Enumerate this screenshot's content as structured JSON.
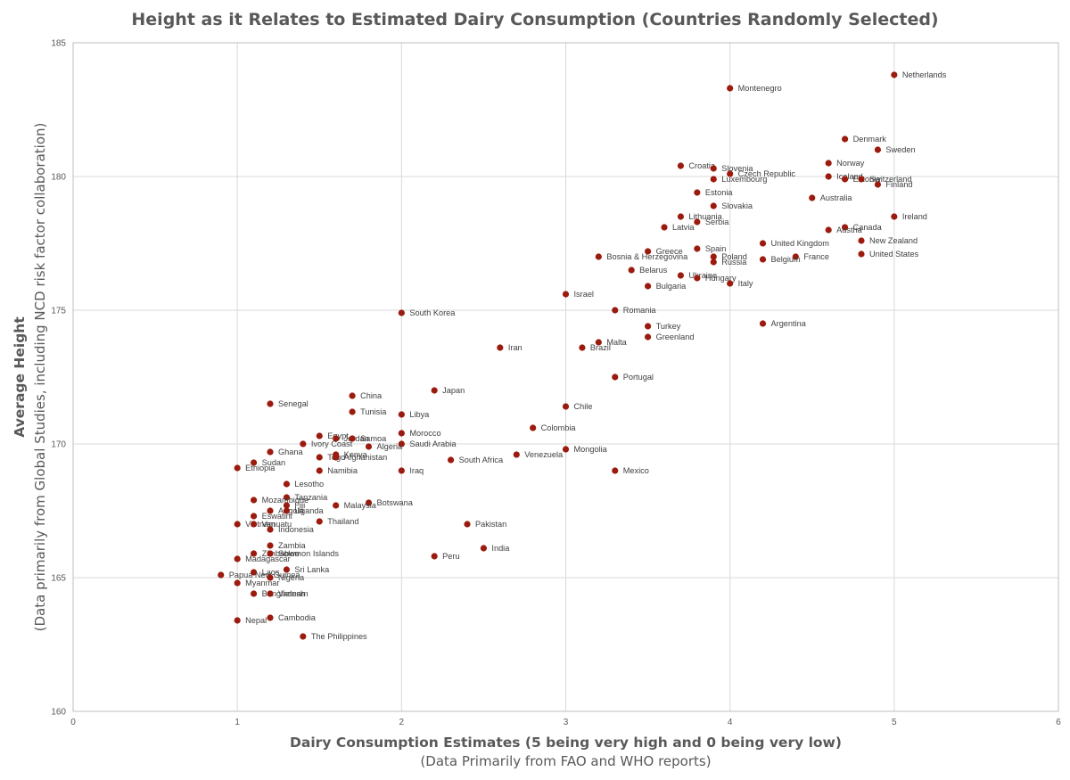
{
  "chart_data": {
    "type": "scatter",
    "title": "Height as it Relates to Estimated Dairy Consumption (Countries Randomly Selected)",
    "xlabel": "Dairy Consumption Estimates (5 being very high and 0 being very low)",
    "xlabel_sub": "(Data Primarily from FAO and WHO reports)",
    "ylabel": "Average Height",
    "ylabel_sub": "(Data primarily  from Global Studies, including NCD risk factor collaboration)",
    "xlim": [
      0,
      6
    ],
    "ylim": [
      160,
      185
    ],
    "x_ticks": [
      "0",
      "1",
      "2",
      "3",
      "4",
      "5",
      "6"
    ],
    "y_ticks": [
      "160",
      "165",
      "170",
      "175",
      "180",
      "185"
    ],
    "grid": true,
    "marker_color": "#9b1b0e",
    "points": [
      {
        "label": "Netherlands",
        "x": 5.0,
        "y": 183.8
      },
      {
        "label": "Montenegro",
        "x": 4.0,
        "y": 183.3
      },
      {
        "label": "Denmark",
        "x": 4.7,
        "y": 181.4
      },
      {
        "label": "Sweden",
        "x": 4.9,
        "y": 181.0
      },
      {
        "label": "Norway",
        "x": 4.6,
        "y": 180.5
      },
      {
        "label": "Croatia",
        "x": 3.7,
        "y": 180.4
      },
      {
        "label": "Slovenia",
        "x": 3.9,
        "y": 180.3
      },
      {
        "label": "Czech Republic",
        "x": 4.0,
        "y": 180.1
      },
      {
        "label": "Iceland",
        "x": 4.6,
        "y": 180.0
      },
      {
        "label": "Estonia",
        "x": 4.7,
        "y": 179.9
      },
      {
        "label": "Switzerland",
        "x": 4.8,
        "y": 179.9
      },
      {
        "label": "Luxembourg",
        "x": 3.9,
        "y": 179.9
      },
      {
        "label": "Finland",
        "x": 4.9,
        "y": 179.7
      },
      {
        "label": "Estonia",
        "x": 3.8,
        "y": 179.4
      },
      {
        "label": "Australia",
        "x": 4.5,
        "y": 179.2
      },
      {
        "label": "Slovakia",
        "x": 3.9,
        "y": 178.9
      },
      {
        "label": "Lithuania",
        "x": 3.7,
        "y": 178.5
      },
      {
        "label": "Ireland",
        "x": 5.0,
        "y": 178.5
      },
      {
        "label": "Serbia",
        "x": 3.8,
        "y": 178.3
      },
      {
        "label": "Latvia",
        "x": 3.6,
        "y": 178.1
      },
      {
        "label": "Canada",
        "x": 4.7,
        "y": 178.1
      },
      {
        "label": "Austria",
        "x": 4.6,
        "y": 178.0
      },
      {
        "label": "New Zealand",
        "x": 4.8,
        "y": 177.6
      },
      {
        "label": "United Kingdom",
        "x": 4.2,
        "y": 177.5
      },
      {
        "label": "Spain",
        "x": 3.8,
        "y": 177.3
      },
      {
        "label": "Greece",
        "x": 3.5,
        "y": 177.2
      },
      {
        "label": "United States",
        "x": 4.8,
        "y": 177.1
      },
      {
        "label": "Bosnia & Herzegovina",
        "x": 3.2,
        "y": 177.0
      },
      {
        "label": "Poland",
        "x": 3.9,
        "y": 177.0
      },
      {
        "label": "France",
        "x": 4.4,
        "y": 177.0
      },
      {
        "label": "Belgium",
        "x": 4.2,
        "y": 176.9
      },
      {
        "label": "Russia",
        "x": 3.9,
        "y": 176.8
      },
      {
        "label": "Belarus",
        "x": 3.4,
        "y": 176.5
      },
      {
        "label": "Ukraine",
        "x": 3.7,
        "y": 176.3
      },
      {
        "label": "Hungary",
        "x": 3.8,
        "y": 176.2
      },
      {
        "label": "Italy",
        "x": 4.0,
        "y": 176.0
      },
      {
        "label": "Bulgaria",
        "x": 3.5,
        "y": 175.9
      },
      {
        "label": "Israel",
        "x": 3.0,
        "y": 175.6
      },
      {
        "label": "Romania",
        "x": 3.3,
        "y": 175.0
      },
      {
        "label": "South Korea",
        "x": 2.0,
        "y": 174.9
      },
      {
        "label": "Argentina",
        "x": 4.2,
        "y": 174.5
      },
      {
        "label": "Turkey",
        "x": 3.5,
        "y": 174.4
      },
      {
        "label": "Greenland",
        "x": 3.5,
        "y": 174.0
      },
      {
        "label": "Malta",
        "x": 3.2,
        "y": 173.8
      },
      {
        "label": "Iran",
        "x": 2.6,
        "y": 173.6
      },
      {
        "label": "Brazil",
        "x": 3.1,
        "y": 173.6
      },
      {
        "label": "Portugal",
        "x": 3.3,
        "y": 172.5
      },
      {
        "label": "Japan",
        "x": 2.2,
        "y": 172.0
      },
      {
        "label": "China",
        "x": 1.7,
        "y": 171.8
      },
      {
        "label": "Senegal",
        "x": 1.2,
        "y": 171.5
      },
      {
        "label": "Chile",
        "x": 3.0,
        "y": 171.4
      },
      {
        "label": "Tunisia",
        "x": 1.7,
        "y": 171.2
      },
      {
        "label": "Libya",
        "x": 2.0,
        "y": 171.1
      },
      {
        "label": "Colombia",
        "x": 2.8,
        "y": 170.6
      },
      {
        "label": "Morocco",
        "x": 2.0,
        "y": 170.4
      },
      {
        "label": "Egypt",
        "x": 1.5,
        "y": 170.3
      },
      {
        "label": "Jordan",
        "x": 1.6,
        "y": 170.2
      },
      {
        "label": "Samoa",
        "x": 1.7,
        "y": 170.2
      },
      {
        "label": "Ivory Coast",
        "x": 1.4,
        "y": 170.0
      },
      {
        "label": "Saudi Arabia",
        "x": 2.0,
        "y": 170.0
      },
      {
        "label": "Algeria",
        "x": 1.8,
        "y": 169.9
      },
      {
        "label": "Mongolia",
        "x": 3.0,
        "y": 169.8
      },
      {
        "label": "Ghana",
        "x": 1.2,
        "y": 169.7
      },
      {
        "label": "Kenya",
        "x": 1.6,
        "y": 169.6
      },
      {
        "label": "Venezuela",
        "x": 2.7,
        "y": 169.6
      },
      {
        "label": "Togo",
        "x": 1.5,
        "y": 169.5
      },
      {
        "label": "Afghanistan",
        "x": 1.6,
        "y": 169.5
      },
      {
        "label": "South Africa",
        "x": 2.3,
        "y": 169.4
      },
      {
        "label": "Sudan",
        "x": 1.1,
        "y": 169.3
      },
      {
        "label": "Ethiopia",
        "x": 1.0,
        "y": 169.1
      },
      {
        "label": "Namibia",
        "x": 1.5,
        "y": 169.0
      },
      {
        "label": "Iraq",
        "x": 2.0,
        "y": 169.0
      },
      {
        "label": "Mexico",
        "x": 3.3,
        "y": 169.0
      },
      {
        "label": "Lesotho",
        "x": 1.3,
        "y": 168.5
      },
      {
        "label": "Tanzania",
        "x": 1.3,
        "y": 168.0
      },
      {
        "label": "Mozambique",
        "x": 1.1,
        "y": 167.9
      },
      {
        "label": "Botswana",
        "x": 1.8,
        "y": 167.8
      },
      {
        "label": "Fiji",
        "x": 1.3,
        "y": 167.7
      },
      {
        "label": "Malaysia",
        "x": 1.6,
        "y": 167.7
      },
      {
        "label": "Angola",
        "x": 1.2,
        "y": 167.5
      },
      {
        "label": "Uganda",
        "x": 1.3,
        "y": 167.5
      },
      {
        "label": "Eswatini",
        "x": 1.1,
        "y": 167.3
      },
      {
        "label": "Thailand",
        "x": 1.5,
        "y": 167.1
      },
      {
        "label": "Vietnam",
        "x": 1.0,
        "y": 167.0
      },
      {
        "label": "Vanuatu",
        "x": 1.1,
        "y": 167.0
      },
      {
        "label": "Pakistan",
        "x": 2.4,
        "y": 167.0
      },
      {
        "label": "Indonesia",
        "x": 1.2,
        "y": 166.8
      },
      {
        "label": "Zambia",
        "x": 1.2,
        "y": 166.2
      },
      {
        "label": "India",
        "x": 2.5,
        "y": 166.1
      },
      {
        "label": "Zimbabwe",
        "x": 1.1,
        "y": 165.9
      },
      {
        "label": "Solomon Islands",
        "x": 1.2,
        "y": 165.9
      },
      {
        "label": "Peru",
        "x": 2.2,
        "y": 165.8
      },
      {
        "label": "Madagascar",
        "x": 1.0,
        "y": 165.7
      },
      {
        "label": "Sri Lanka",
        "x": 1.3,
        "y": 165.3
      },
      {
        "label": "Laos",
        "x": 1.1,
        "y": 165.2
      },
      {
        "label": "Papua New Guinea",
        "x": 0.9,
        "y": 165.1
      },
      {
        "label": "Nigeria",
        "x": 1.2,
        "y": 165.0
      },
      {
        "label": "Myanmar",
        "x": 1.0,
        "y": 164.8
      },
      {
        "label": "Bangladesh",
        "x": 1.1,
        "y": 164.4
      },
      {
        "label": "Vietnam",
        "x": 1.2,
        "y": 164.4
      },
      {
        "label": "Cambodia",
        "x": 1.2,
        "y": 163.5
      },
      {
        "label": "Nepal",
        "x": 1.0,
        "y": 163.4
      },
      {
        "label": "The Philippines",
        "x": 1.4,
        "y": 162.8
      }
    ]
  }
}
